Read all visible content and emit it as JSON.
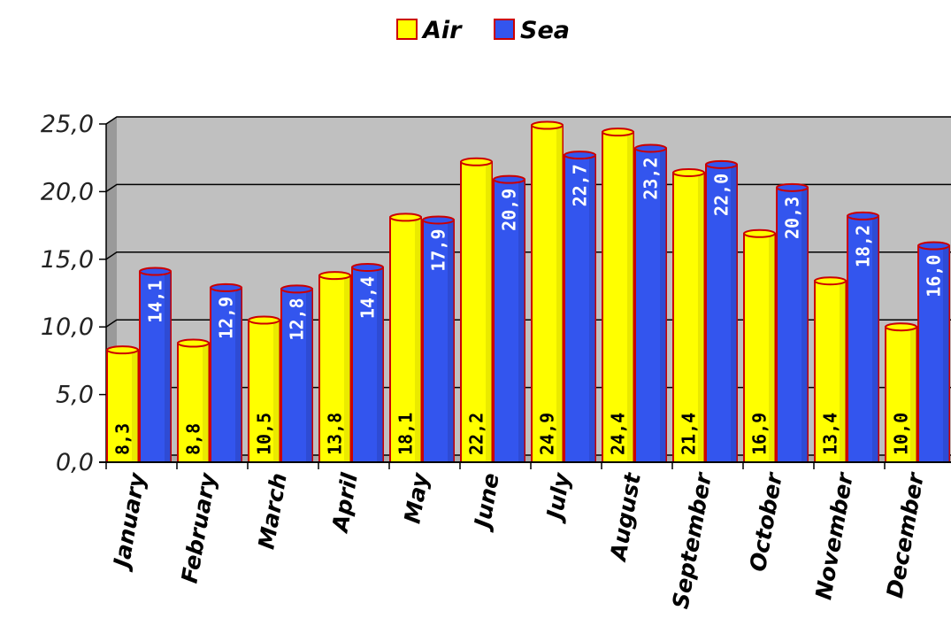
{
  "chart_data": {
    "type": "bar",
    "categories": [
      "January",
      "February",
      "March",
      "April",
      "May",
      "June",
      "July",
      "August",
      "September",
      "October",
      "November",
      "December"
    ],
    "series": [
      {
        "name": "Air",
        "color": "#ffff00",
        "values": [
          8.3,
          8.8,
          10.5,
          13.8,
          18.1,
          22.2,
          24.9,
          24.4,
          21.4,
          16.9,
          13.4,
          10.0
        ],
        "labels": [
          "8,3",
          "8,8",
          "10,5",
          "13,8",
          "18,1",
          "22,2",
          "24,9",
          "24,4",
          "21,4",
          "16,9",
          "13,4",
          "10,0"
        ]
      },
      {
        "name": "Sea",
        "color": "#3355ee",
        "values": [
          14.1,
          12.9,
          12.8,
          14.4,
          17.9,
          20.9,
          22.7,
          23.2,
          22.0,
          20.3,
          18.2,
          16.0
        ],
        "labels": [
          "14,1",
          "12,9",
          "12,8",
          "14,4",
          "17,9",
          "20,9",
          "22,7",
          "23,2",
          "22,0",
          "20,3",
          "18,2",
          "16,0"
        ]
      }
    ],
    "yticks": [
      "0,0",
      "5,0",
      "10,0",
      "15,0",
      "20,0",
      "25,0"
    ],
    "ylim": [
      0,
      25
    ],
    "grid": true,
    "legend_position": "top-center",
    "plot_background": "#c0c0c0",
    "bar_outline": "#cc0000"
  }
}
